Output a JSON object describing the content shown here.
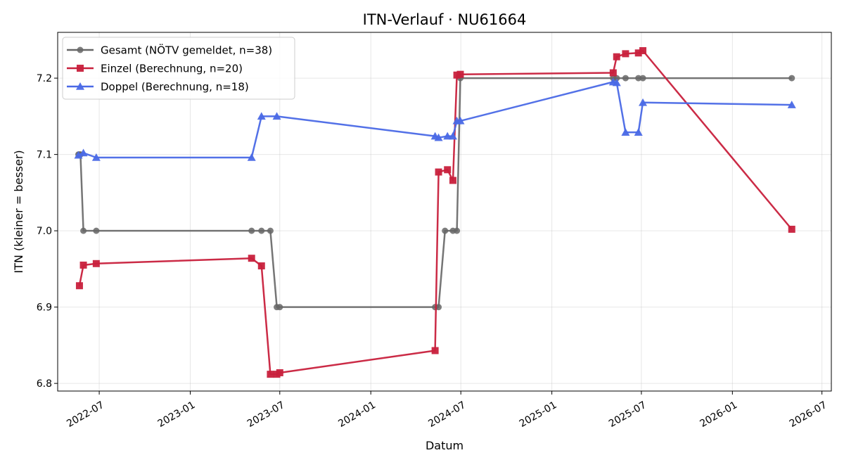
{
  "chart_data": {
    "type": "line",
    "title": "ITN-Verlauf · NU61664",
    "xlabel": "Datum",
    "ylabel": "ITN  (kleiner = besser)",
    "x_axis_type": "date",
    "xlim": [
      "2022-04-08",
      "2026-07-20"
    ],
    "ylim": [
      6.79,
      7.26
    ],
    "x_ticks": [
      "2022-07-01",
      "2023-01-01",
      "2023-07-01",
      "2024-01-01",
      "2024-07-01",
      "2025-01-01",
      "2025-07-01",
      "2026-01-01",
      "2026-07-01"
    ],
    "x_tick_labels": [
      "2022-07",
      "2023-01",
      "2023-07",
      "2024-01",
      "2024-07",
      "2025-01",
      "2025-07",
      "2026-01",
      "2026-07"
    ],
    "y_ticks": [
      6.8,
      6.9,
      7.0,
      7.1,
      7.2
    ],
    "y_tick_labels": [
      "6.8",
      "6.9",
      "7.0",
      "7.1",
      "7.2"
    ],
    "grid": true,
    "legend_position": "top-left",
    "series": [
      {
        "name": "Gesamt (NÖTV gemeldet, n=38)",
        "color": "#666666",
        "marker": "circle",
        "points": [
          {
            "x": "2022-05-20",
            "y": 7.1
          },
          {
            "x": "2022-05-22",
            "y": 7.1
          },
          {
            "x": "2022-05-24",
            "y": 7.1
          },
          {
            "x": "2022-05-30",
            "y": 7.0
          },
          {
            "x": "2022-06-25",
            "y": 7.0
          },
          {
            "x": "2023-05-05",
            "y": 7.0
          },
          {
            "x": "2023-05-25",
            "y": 7.0
          },
          {
            "x": "2023-06-12",
            "y": 7.0
          },
          {
            "x": "2023-06-25",
            "y": 6.9
          },
          {
            "x": "2023-07-01",
            "y": 6.9
          },
          {
            "x": "2024-05-10",
            "y": 6.9
          },
          {
            "x": "2024-05-17",
            "y": 6.9
          },
          {
            "x": "2024-05-30",
            "y": 7.0
          },
          {
            "x": "2024-06-15",
            "y": 7.0
          },
          {
            "x": "2024-06-23",
            "y": 7.0
          },
          {
            "x": "2024-06-30",
            "y": 7.2
          },
          {
            "x": "2025-05-05",
            "y": 7.2
          },
          {
            "x": "2025-05-12",
            "y": 7.2
          },
          {
            "x": "2025-05-30",
            "y": 7.2
          },
          {
            "x": "2025-06-25",
            "y": 7.2
          },
          {
            "x": "2025-07-04",
            "y": 7.2
          },
          {
            "x": "2026-05-01",
            "y": 7.2
          }
        ]
      },
      {
        "name": "Einzel (Berechnung, n=20)",
        "color": "#c8203c",
        "marker": "square",
        "points": [
          {
            "x": "2022-05-22",
            "y": 6.928
          },
          {
            "x": "2022-05-30",
            "y": 6.955
          },
          {
            "x": "2022-06-25",
            "y": 6.957
          },
          {
            "x": "2023-05-05",
            "y": 6.964
          },
          {
            "x": "2023-05-25",
            "y": 6.954
          },
          {
            "x": "2023-06-12",
            "y": 6.812
          },
          {
            "x": "2023-06-25",
            "y": 6.812
          },
          {
            "x": "2023-07-01",
            "y": 6.814
          },
          {
            "x": "2024-05-10",
            "y": 6.843
          },
          {
            "x": "2024-05-17",
            "y": 7.077
          },
          {
            "x": "2024-06-04",
            "y": 7.08
          },
          {
            "x": "2024-06-15",
            "y": 7.066
          },
          {
            "x": "2024-06-23",
            "y": 7.204
          },
          {
            "x": "2024-06-30",
            "y": 7.205
          },
          {
            "x": "2025-05-05",
            "y": 7.207
          },
          {
            "x": "2025-05-12",
            "y": 7.228
          },
          {
            "x": "2025-05-30",
            "y": 7.232
          },
          {
            "x": "2025-06-25",
            "y": 7.233
          },
          {
            "x": "2025-07-04",
            "y": 7.236
          },
          {
            "x": "2026-05-01",
            "y": 7.002
          }
        ]
      },
      {
        "name": "Doppel (Berechnung, n=18)",
        "color": "#4a69e6",
        "marker": "triangle",
        "points": [
          {
            "x": "2022-05-20",
            "y": 7.099
          },
          {
            "x": "2022-05-30",
            "y": 7.102
          },
          {
            "x": "2022-06-25",
            "y": 7.096
          },
          {
            "x": "2023-05-05",
            "y": 7.096
          },
          {
            "x": "2023-05-25",
            "y": 7.15
          },
          {
            "x": "2023-06-25",
            "y": 7.15
          },
          {
            "x": "2024-05-10",
            "y": 7.124
          },
          {
            "x": "2024-05-17",
            "y": 7.122
          },
          {
            "x": "2024-06-04",
            "y": 7.124
          },
          {
            "x": "2024-06-15",
            "y": 7.124
          },
          {
            "x": "2024-06-23",
            "y": 7.144
          },
          {
            "x": "2024-06-30",
            "y": 7.144
          },
          {
            "x": "2025-05-05",
            "y": 7.195
          },
          {
            "x": "2025-05-12",
            "y": 7.194
          },
          {
            "x": "2025-05-30",
            "y": 7.129
          },
          {
            "x": "2025-06-25",
            "y": 7.129
          },
          {
            "x": "2025-07-04",
            "y": 7.168
          },
          {
            "x": "2026-05-01",
            "y": 7.165
          }
        ]
      }
    ]
  }
}
